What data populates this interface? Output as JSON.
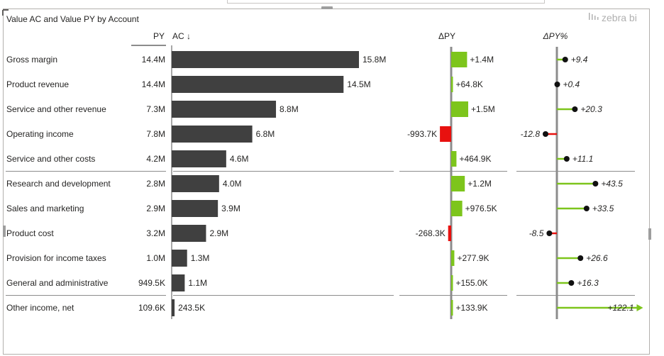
{
  "visual": {
    "title": "Value AC and Value PY by Account",
    "brand": "zebra bi"
  },
  "chart_data": {
    "type": "bar",
    "title": "Value AC and Value PY by Account",
    "headers": {
      "py": "PY",
      "ac": "AC ↓",
      "delta": "ΔPY",
      "delta_pct": "ΔPY%"
    },
    "categories": [
      "Gross margin",
      "Product revenue",
      "Service and other revenue",
      "Operating income",
      "Service and other costs",
      "Research and development",
      "Sales and marketing",
      "Product cost",
      "Provision for income taxes",
      "General and administrative",
      "Other income, net"
    ],
    "py_labels": [
      "14.4M",
      "14.4M",
      "7.3M",
      "7.8M",
      "4.2M",
      "2.8M",
      "2.9M",
      "3.2M",
      "1.0M",
      "949.5K",
      "109.6K"
    ],
    "ac_values": [
      15.8,
      14.5,
      8.8,
      6.8,
      4.6,
      4.0,
      3.9,
      2.9,
      1.3,
      1.1,
      0.2435
    ],
    "ac_labels": [
      "15.8M",
      "14.5M",
      "8.8M",
      "6.8M",
      "4.6M",
      "4.0M",
      "3.9M",
      "2.9M",
      "1.3M",
      "1.1M",
      "243.5K"
    ],
    "delta_values": [
      1.4,
      0.0648,
      1.5,
      -0.9937,
      0.4649,
      1.2,
      0.9765,
      -0.2683,
      0.2779,
      0.155,
      0.1339
    ],
    "delta_labels": [
      "+1.4M",
      "+64.8K",
      "+1.5M",
      "-993.7K",
      "+464.9K",
      "+1.2M",
      "+976.5K",
      "-268.3K",
      "+277.9K",
      "+155.0K",
      "+133.9K"
    ],
    "delta_pct_values": [
      9.4,
      0.4,
      20.3,
      -12.8,
      11.1,
      43.5,
      33.5,
      -8.5,
      26.6,
      16.3,
      122.1
    ],
    "delta_pct_labels": [
      "+9.4",
      "+0.4",
      "+20.3",
      "-12.8",
      "+11.1",
      "+43.5",
      "+33.5",
      "-8.5",
      "+26.6",
      "+16.3",
      "+122.1"
    ],
    "separators_after": [
      4,
      9
    ],
    "colors": {
      "ac_bar": "#404040",
      "positive": "#7dc51c",
      "negative": "#e8110f",
      "axis": "#8c8c8c",
      "text": "#252423"
    }
  }
}
